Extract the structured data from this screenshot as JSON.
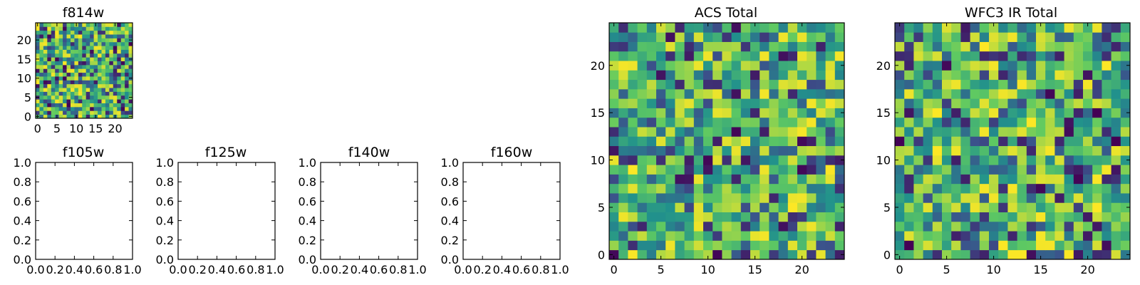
{
  "chart_data": [
    {
      "type": "heatmap",
      "title": "f814w",
      "xlabel": "",
      "ylabel": "",
      "grid_size": 25,
      "xlim": [
        -0.5,
        24.5
      ],
      "ylim": [
        -0.5,
        24.5
      ],
      "xticks": [
        0,
        5,
        10,
        15,
        20
      ],
      "yticks": [
        0,
        5,
        10,
        15,
        20
      ],
      "colormap": "viridis",
      "seed": 814,
      "values_note": ""
    },
    {
      "type": "blank",
      "title": "f105w",
      "xlim": [
        0.0,
        1.0
      ],
      "ylim": [
        0.0,
        1.0
      ],
      "xticks": [
        "0.0",
        "0.2",
        "0.4",
        "0.6",
        "0.8",
        "1.0"
      ],
      "yticks": [
        "0.0",
        "0.2",
        "0.4",
        "0.6",
        "0.8",
        "1.0"
      ]
    },
    {
      "type": "blank",
      "title": "f125w",
      "xlim": [
        0.0,
        1.0
      ],
      "ylim": [
        0.0,
        1.0
      ],
      "xticks": [
        "0.0",
        "0.2",
        "0.4",
        "0.6",
        "0.8",
        "1.0"
      ],
      "yticks": [
        "0.0",
        "0.2",
        "0.4",
        "0.6",
        "0.8",
        "1.0"
      ]
    },
    {
      "type": "blank",
      "title": "f140w",
      "xlim": [
        0.0,
        1.0
      ],
      "ylim": [
        0.0,
        1.0
      ],
      "xticks": [
        "0.0",
        "0.2",
        "0.4",
        "0.6",
        "0.8",
        "1.0"
      ],
      "yticks": [
        "0.0",
        "0.2",
        "0.4",
        "0.6",
        "0.8",
        "1.0"
      ]
    },
    {
      "type": "blank",
      "title": "f160w",
      "xlim": [
        0.0,
        1.0
      ],
      "ylim": [
        0.0,
        1.0
      ],
      "xticks": [
        "0.0",
        "0.2",
        "0.4",
        "0.6",
        "0.8",
        "1.0"
      ],
      "yticks": [
        "0.0",
        "0.2",
        "0.4",
        "0.6",
        "0.8",
        "1.0"
      ]
    },
    {
      "type": "heatmap",
      "title": "ACS Total",
      "grid_size": 25,
      "xlim": [
        -0.5,
        24.5
      ],
      "ylim": [
        -0.5,
        24.5
      ],
      "xticks": [
        0,
        5,
        10,
        15,
        20
      ],
      "yticks": [
        0,
        5,
        10,
        15,
        20
      ],
      "colormap": "viridis",
      "seed": 1977
    },
    {
      "type": "heatmap",
      "title": "WFC3 IR Total",
      "grid_size": 25,
      "xlim": [
        -0.5,
        24.5
      ],
      "ylim": [
        -0.5,
        24.5
      ],
      "xticks": [
        0,
        5,
        10,
        15,
        20
      ],
      "yticks": [
        0,
        5,
        10,
        15,
        20
      ],
      "colormap": "viridis",
      "seed": 3141
    }
  ],
  "colors": {
    "viridis_stops": [
      "#440154",
      "#3b528b",
      "#21918c",
      "#5ec962",
      "#fde725"
    ]
  }
}
